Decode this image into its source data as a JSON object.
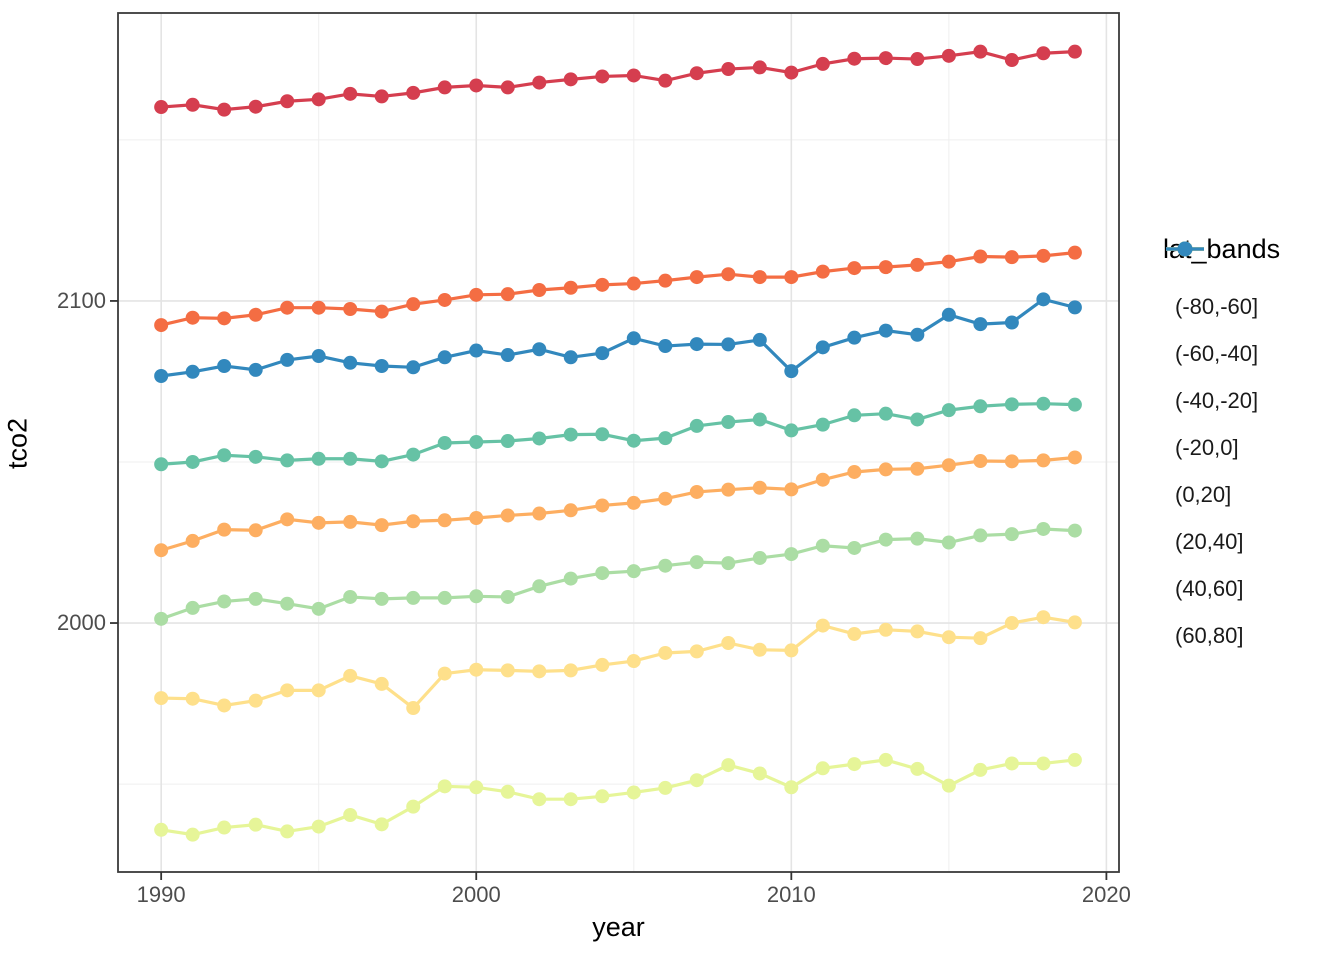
{
  "chart_data": {
    "type": "line",
    "title": "",
    "xlabel": "year",
    "ylabel": "tco2",
    "legend_title": "lat_bands",
    "legend_position": "right",
    "grid": true,
    "x_ticks": [
      1990,
      2000,
      2010,
      2020
    ],
    "y_ticks": [
      2000,
      2100
    ],
    "x_minor_ticks": [
      1995,
      2005,
      2015
    ],
    "y_minor_ticks": [
      1950,
      2050,
      2150
    ],
    "xlim": [
      1988.63,
      2020.4
    ],
    "ylim": [
      1922.7,
      2189.4
    ],
    "x": [
      1990,
      1991,
      1992,
      1993,
      1994,
      1995,
      1996,
      1997,
      1998,
      1999,
      2000,
      2001,
      2002,
      2003,
      2004,
      2005,
      2006,
      2007,
      2008,
      2009,
      2010,
      2011,
      2012,
      2013,
      2014,
      2015,
      2016,
      2017,
      2018,
      2019
    ],
    "series": [
      {
        "name": "(-80,-60]",
        "color": "#d53e4f",
        "values": [
          2160.2,
          2160.9,
          2159.4,
          2160.3,
          2162.0,
          2162.6,
          2164.3,
          2163.5,
          2164.6,
          2166.3,
          2166.9,
          2166.3,
          2167.8,
          2168.8,
          2169.7,
          2170.0,
          2168.4,
          2170.7,
          2172.0,
          2172.5,
          2170.9,
          2173.6,
          2175.2,
          2175.4,
          2175.1,
          2176.1,
          2177.4,
          2174.8,
          2176.9,
          2177.4
        ]
      },
      {
        "name": "(-60,-40]",
        "color": "#f46d43",
        "values": [
          2092.5,
          2094.8,
          2094.6,
          2095.7,
          2097.9,
          2097.9,
          2097.5,
          2096.7,
          2099.0,
          2100.3,
          2101.9,
          2102.1,
          2103.4,
          2104.1,
          2105.0,
          2105.4,
          2106.3,
          2107.4,
          2108.3,
          2107.4,
          2107.4,
          2109.1,
          2110.2,
          2110.5,
          2111.2,
          2112.2,
          2113.8,
          2113.6,
          2114.0,
          2115.0
        ]
      },
      {
        "name": "(-40,-20]",
        "color": "#fdae61",
        "values": [
          2022.6,
          2025.5,
          2029.0,
          2028.8,
          2032.2,
          2031.1,
          2031.4,
          2030.4,
          2031.6,
          2031.9,
          2032.6,
          2033.4,
          2034.0,
          2035.0,
          2036.5,
          2037.3,
          2038.6,
          2040.7,
          2041.4,
          2042.0,
          2041.5,
          2044.5,
          2046.9,
          2047.7,
          2047.9,
          2049.0,
          2050.3,
          2050.2,
          2050.5,
          2051.4
        ]
      },
      {
        "name": "(-20,0]",
        "color": "#fee08b",
        "values": [
          1976.7,
          1976.5,
          1974.4,
          1975.9,
          1979.1,
          1979.1,
          1983.6,
          1981.1,
          1973.6,
          1984.3,
          1985.5,
          1985.3,
          1985.0,
          1985.3,
          1987.0,
          1988.2,
          1990.7,
          1991.2,
          1993.8,
          1991.7,
          1991.5,
          1999.2,
          1996.6,
          1997.9,
          1997.4,
          1995.6,
          1995.3,
          2000.0,
          2001.8,
          2000.2
        ]
      },
      {
        "name": "(0,20]",
        "color": "#e6f598",
        "values": [
          1935.8,
          1934.3,
          1936.5,
          1937.4,
          1935.3,
          1936.8,
          1940.4,
          1937.5,
          1943.0,
          1949.3,
          1949.0,
          1947.6,
          1945.3,
          1945.3,
          1946.2,
          1947.4,
          1948.8,
          1951.2,
          1955.9,
          1953.3,
          1949.0,
          1954.9,
          1956.2,
          1957.5,
          1954.7,
          1949.5,
          1954.4,
          1956.4,
          1956.4,
          1957.5
        ]
      },
      {
        "name": "(20,40]",
        "color": "#abdda4",
        "values": [
          2001.3,
          2004.7,
          2006.7,
          2007.5,
          2006.0,
          2004.4,
          2008.1,
          2007.5,
          2007.8,
          2007.8,
          2008.3,
          2008.1,
          2011.4,
          2013.8,
          2015.5,
          2016.1,
          2017.8,
          2018.9,
          2018.6,
          2020.2,
          2021.4,
          2024.0,
          2023.3,
          2025.9,
          2026.2,
          2025.0,
          2027.2,
          2027.6,
          2029.2,
          2028.7
        ]
      },
      {
        "name": "(40,60]",
        "color": "#66c2a5",
        "values": [
          2049.3,
          2050.0,
          2052.1,
          2051.6,
          2050.5,
          2051.0,
          2051.0,
          2050.2,
          2052.3,
          2055.9,
          2056.2,
          2056.5,
          2057.3,
          2058.5,
          2058.6,
          2056.6,
          2057.4,
          2061.2,
          2062.4,
          2063.2,
          2059.8,
          2061.6,
          2064.5,
          2065.0,
          2063.2,
          2066.1,
          2067.3,
          2067.9,
          2068.1,
          2067.8
        ]
      },
      {
        "name": "(60,80]",
        "color": "#3288bd",
        "values": [
          2076.7,
          2078.0,
          2079.8,
          2078.6,
          2081.7,
          2082.9,
          2080.8,
          2079.8,
          2079.4,
          2082.5,
          2084.6,
          2083.2,
          2085.0,
          2082.5,
          2083.8,
          2088.4,
          2086.0,
          2086.6,
          2086.5,
          2087.9,
          2078.2,
          2085.6,
          2088.6,
          2090.8,
          2089.5,
          2095.7,
          2092.8,
          2093.3,
          2100.5,
          2098.0
        ]
      }
    ],
    "style": {
      "panel_border": "#3b3b3b",
      "grid_major": "#e4e4e4",
      "grid_minor": "#efefef",
      "tick_color": "#333333",
      "tick_label_color": "#4d4d4d",
      "point_radius": 7,
      "line_width": 3.2
    }
  }
}
